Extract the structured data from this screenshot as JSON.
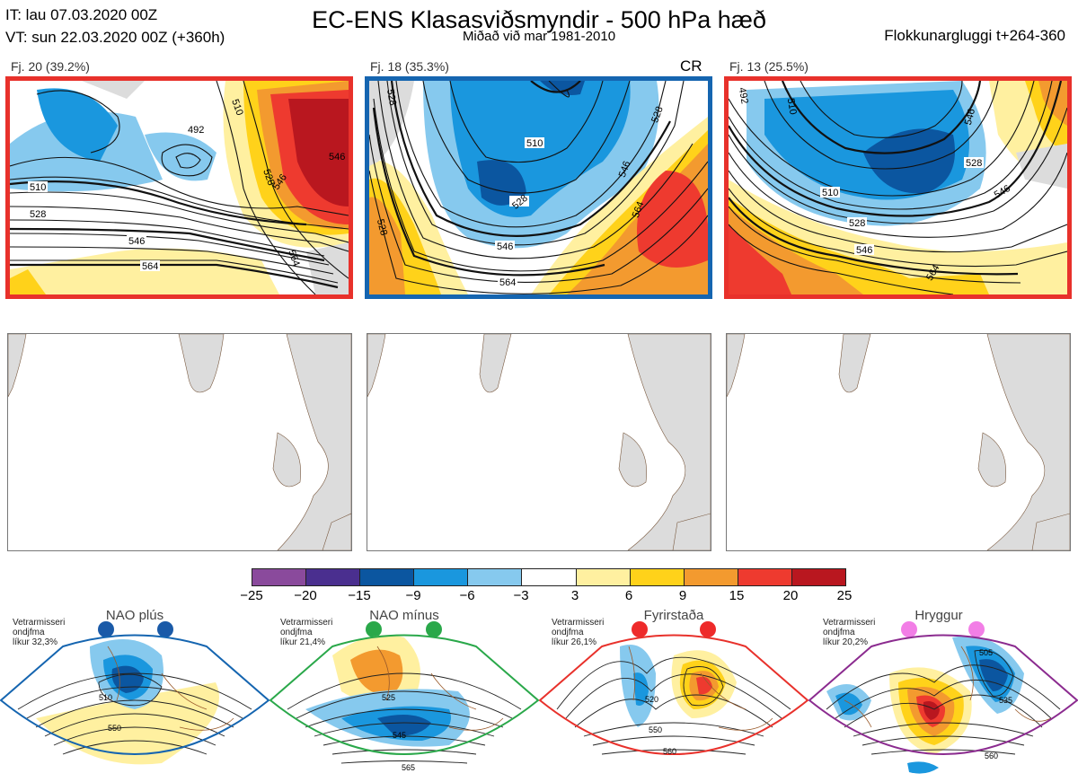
{
  "header": {
    "it": "IT: lau 07.03.2020 00Z",
    "vt": "VT: sun 22.03.2020 00Z  (+360h)",
    "title": "EC-ENS Klasasviðsmyndir - 500 hPa hæð",
    "subtitle": "Miðað við mar 1981-2010",
    "window": "Flokkunargluggi t+264-360"
  },
  "clusters": [
    {
      "label": "Fj. 20 (39.2%)",
      "tag": "",
      "frame_color": "#e8312b",
      "contours": [
        "492",
        "510",
        "528",
        "546",
        "564",
        "510",
        "528",
        "546",
        "564",
        "546"
      ]
    },
    {
      "label": "Fj. 18 (35.3%)",
      "tag": "CR",
      "frame_color": "#1565b0",
      "contours": [
        "528",
        "510",
        "528",
        "546",
        "564",
        "546",
        "564",
        "528",
        "528"
      ]
    },
    {
      "label": "Fj. 13 (25.5%)",
      "tag": "",
      "frame_color": "#e8312b",
      "contours": [
        "492",
        "510",
        "528",
        "546",
        "564",
        "510",
        "528",
        "546",
        "546"
      ]
    }
  ],
  "colorbar": {
    "labels": [
      "−25",
      "−20",
      "−15",
      "−9",
      "−6",
      "−3",
      "3",
      "6",
      "9",
      "15",
      "20",
      "25"
    ],
    "colors": [
      "#8a4a9c",
      "#4a2f8f",
      "#0b56a0",
      "#1a97de",
      "#86c9ee",
      "#ffffff",
      "#fff0a0",
      "#ffd21a",
      "#f39a2f",
      "#ee3a2f",
      "#b9171f"
    ]
  },
  "regimes": [
    {
      "title": "NAO plús",
      "note": [
        "Vetrarmisseri",
        "ondjfma",
        "líkur 32,3%"
      ],
      "frame_color": "#1565b0",
      "dot_color": "#1a5aa8",
      "contours": [
        "510",
        "550"
      ]
    },
    {
      "title": "NAO mínus",
      "note": [
        "Vetrarmisseri",
        "ondjfma",
        "líkur 21,4%"
      ],
      "frame_color": "#2aa84a",
      "dot_color": "#2aa84a",
      "contours": [
        "525",
        "545",
        "565"
      ]
    },
    {
      "title": "Fyrirstaða",
      "note": [
        "Vetrarmisseri",
        "ondjfma",
        "líkur 26,1%"
      ],
      "frame_color": "#e8312b",
      "dot_color": "#ee2a2a",
      "contours": [
        "520",
        "550",
        "560"
      ]
    },
    {
      "title": "Hryggur",
      "note": [
        "Vetrarmisseri",
        "ondjfma",
        "líkur 20,2%"
      ],
      "frame_color": "#8b2b8f",
      "dot_color": "#f27ee6",
      "contours": [
        "505",
        "535",
        "560"
      ]
    }
  ]
}
